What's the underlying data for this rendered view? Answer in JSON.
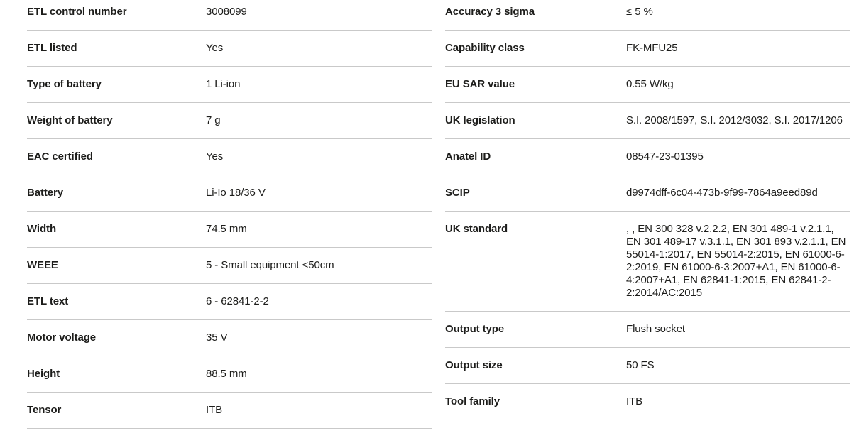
{
  "colors": {
    "background": "#ffffff",
    "text": "#1d1d1b",
    "divider": "#c9c9c9"
  },
  "table_left": {
    "rows": [
      {
        "label": "ETL control number",
        "value": "3008099"
      },
      {
        "label": "ETL listed",
        "value": "Yes"
      },
      {
        "label": "Type of battery",
        "value": "1 Li-ion"
      },
      {
        "label": "Weight of battery",
        "value": "7 g"
      },
      {
        "label": "EAC certified",
        "value": "Yes"
      },
      {
        "label": "Battery",
        "value": "Li-Io 18/36 V"
      },
      {
        "label": "Width",
        "value": "74.5 mm"
      },
      {
        "label": "WEEE",
        "value": "5 - Small equipment <50cm"
      },
      {
        "label": "ETL text",
        "value": "6 - 62841-2-2"
      },
      {
        "label": "Motor voltage",
        "value": "35 V"
      },
      {
        "label": "Height",
        "value": "88.5 mm"
      },
      {
        "label": "Tensor",
        "value": "ITB"
      }
    ]
  },
  "table_right": {
    "rows": [
      {
        "label": "Accuracy 3 sigma",
        "value": "≤ 5 %"
      },
      {
        "label": "Capability class",
        "value": "FK-MFU25"
      },
      {
        "label": "EU SAR value",
        "value": "0.55 W/kg"
      },
      {
        "label": "UK legislation",
        "value": "S.I. 2008/1597, S.I. 2012/3032, S.I. 2017/1206"
      },
      {
        "label": "Anatel ID",
        "value": "08547-23-01395"
      },
      {
        "label": "SCIP",
        "value": "d9974dff-6c04-473b-9f99-7864a9eed89d"
      },
      {
        "label": "UK standard",
        "value": ", , EN 300 328 v.2.2.2, EN 301 489-1 v.2.1.1, EN 301 489-17 v.3.1.1, EN 301 893 v.2.1.1, EN 55014-1:2017, EN 55014-2:2015, EN 61000-6-2:2019, EN 61000-6-3:2007+A1, EN 61000-6-4:2007+A1, EN 62841-1:2015, EN 62841-2-2:2014/AC:2015"
      },
      {
        "label": "Output type",
        "value": "Flush socket"
      },
      {
        "label": "Output size",
        "value": "50 FS"
      },
      {
        "label": "Tool family",
        "value": "ITB"
      }
    ]
  }
}
